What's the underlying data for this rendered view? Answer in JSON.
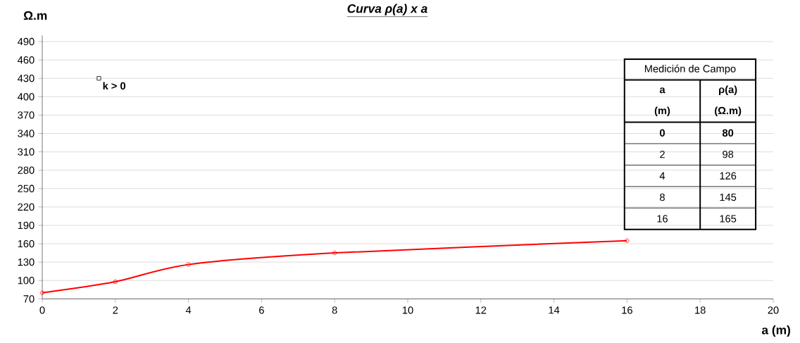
{
  "chart_data": {
    "type": "line",
    "title": "Curva ρ(a) x a",
    "xlabel": "a (m)",
    "ylabel": "Ω.m",
    "xlim": [
      0,
      20
    ],
    "xticks": [
      0,
      2,
      4,
      6,
      8,
      10,
      12,
      14,
      16,
      18,
      20
    ],
    "ylim": [
      70,
      500
    ],
    "yticks": [
      70,
      100,
      130,
      160,
      190,
      220,
      250,
      280,
      310,
      340,
      370,
      400,
      430,
      460,
      490
    ],
    "grid": "y",
    "series": [
      {
        "color": "#ff0000",
        "marker": "circle",
        "x": [
          0,
          2,
          4,
          8,
          16
        ],
        "values": [
          80,
          98,
          126,
          145,
          165
        ]
      },
      {
        "type": "scatter",
        "name": "k > 0",
        "color": "#000000",
        "marker": "square",
        "x": [
          1.55
        ],
        "values": [
          430
        ]
      }
    ],
    "annotations": [
      "Medición de Campo",
      "a",
      "(m)",
      "ρ(a)",
      "(Ω.m)",
      "0",
      "80",
      "2",
      "98",
      "4",
      "126",
      "8",
      "145",
      "16",
      "165"
    ]
  }
}
